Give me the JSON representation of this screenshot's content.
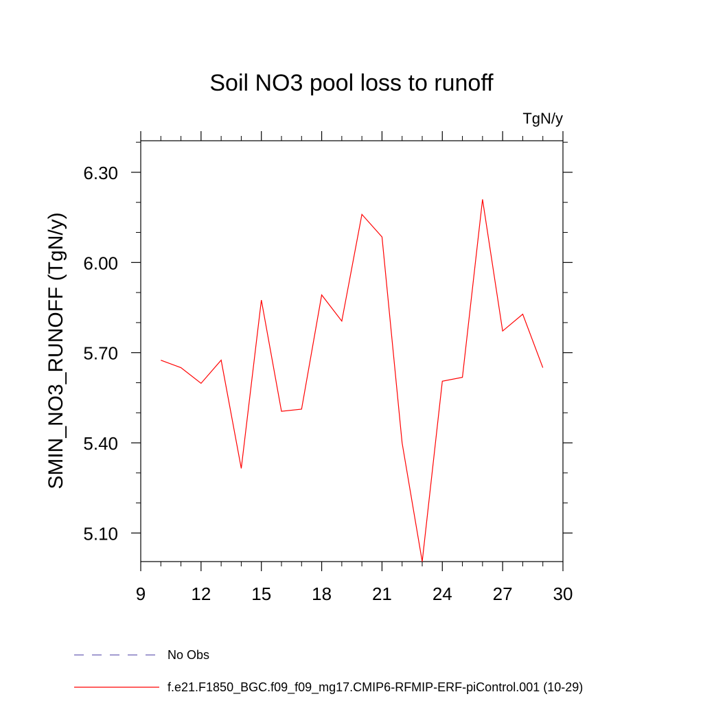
{
  "chart_data": {
    "type": "line",
    "title": "Soil NO3 pool loss to runoff",
    "units_label": "TgN/y",
    "xlabel": "",
    "ylabel": "SMIN_NO3_RUNOFF  (TgN/y)",
    "xlim": [
      9,
      30
    ],
    "ylim": [
      5.005,
      6.405
    ],
    "x_ticks": [
      9,
      12,
      15,
      18,
      21,
      24,
      27,
      30
    ],
    "x_tick_labels": [
      "9",
      "12",
      "15",
      "18",
      "21",
      "24",
      "27",
      "30"
    ],
    "y_ticks": [
      5.1,
      5.4,
      5.7,
      6.0,
      6.3
    ],
    "y_tick_labels": [
      "5.10",
      "5.40",
      "5.70",
      "6.00",
      "6.30"
    ],
    "grid": false,
    "legend_position": "bottom-left",
    "series": [
      {
        "name": "f.e21.F1850_BGC.f09_f09_mg17.CMIP6-RFMIP-ERF-piControl.001 (10-29)",
        "color": "#ff0000",
        "style": "solid",
        "x": [
          10,
          11,
          12,
          13,
          14,
          15,
          16,
          17,
          18,
          19,
          20,
          21,
          22,
          23,
          24,
          25,
          26,
          27,
          28,
          29
        ],
        "values": [
          5.675,
          5.65,
          5.598,
          5.675,
          5.315,
          5.875,
          5.505,
          5.512,
          5.892,
          5.805,
          6.16,
          6.085,
          5.4,
          5.005,
          5.605,
          5.618,
          6.21,
          5.772,
          5.828,
          5.65
        ]
      },
      {
        "name": "No Obs",
        "color": "#6b5fb5",
        "style": "dashed",
        "x": [],
        "values": []
      }
    ]
  }
}
